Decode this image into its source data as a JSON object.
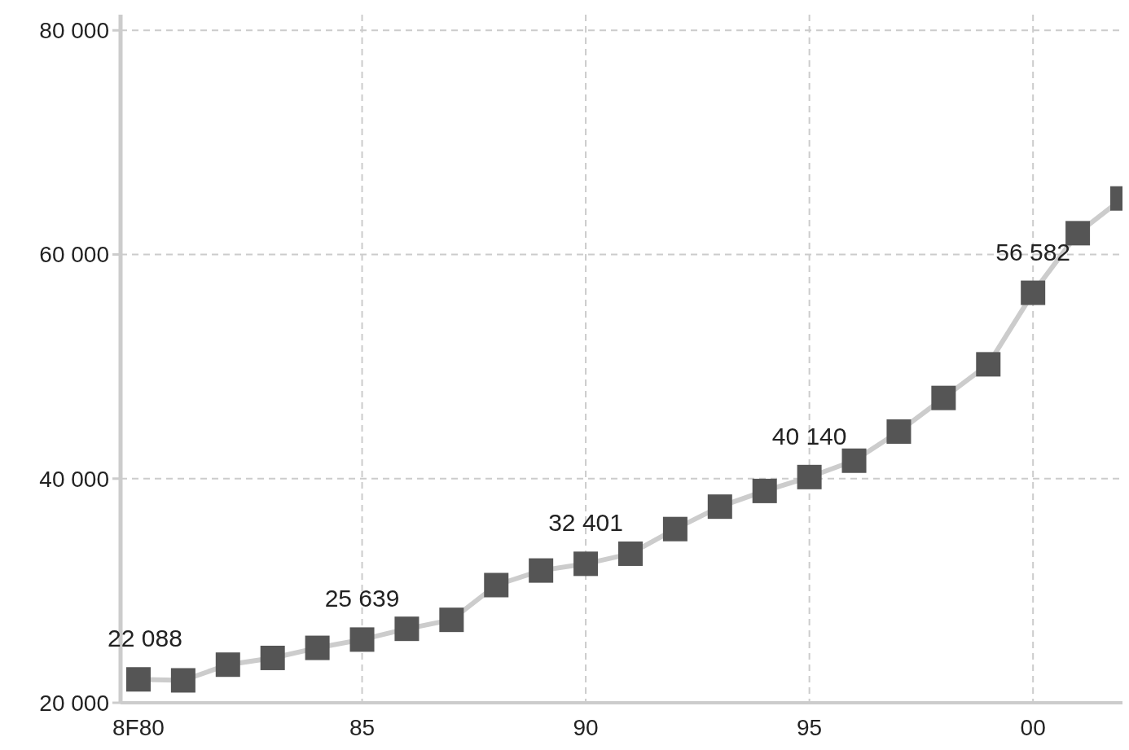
{
  "chart_data": {
    "type": "line",
    "x": [
      1980,
      1981,
      1982,
      1983,
      1984,
      1985,
      1986,
      1987,
      1988,
      1989,
      1990,
      1991,
      1992,
      1993,
      1994,
      1995,
      1996,
      1997,
      1998,
      1999,
      2000,
      2001,
      2002
    ],
    "series": [
      {
        "color": "#555555",
        "values": [
          22088,
          22000,
          23400,
          24000,
          24900,
          25639,
          26600,
          27400,
          30500,
          31800,
          32401,
          33300,
          35500,
          37500,
          38900,
          40140,
          41600,
          44200,
          47200,
          50200,
          56582,
          61900,
          65000
        ],
        "value_labels": [
          "22 088",
          null,
          null,
          null,
          null,
          "25 639",
          null,
          null,
          null,
          null,
          "32 401",
          null,
          null,
          null,
          null,
          "40 140",
          null,
          null,
          null,
          null,
          "56 582",
          null,
          null
        ]
      }
    ],
    "xlim": [
      1979.6,
      2002
    ],
    "xticks": [
      {
        "value": 1980,
        "label": "8F80"
      },
      {
        "value": 1985,
        "label": "85"
      },
      {
        "value": 1990,
        "label": "90"
      },
      {
        "value": 1995,
        "label": "95"
      },
      {
        "value": 2000,
        "label": "00"
      }
    ],
    "ylim": [
      20000,
      81400
    ],
    "yticks": [
      {
        "value": 20000,
        "label": "20 000"
      },
      {
        "value": 40000,
        "label": "40 000"
      },
      {
        "value": 60000,
        "label": "60 000"
      },
      {
        "value": 80000,
        "label": "80 000"
      }
    ],
    "grid": true,
    "marker": "square",
    "line_style": "solid"
  }
}
